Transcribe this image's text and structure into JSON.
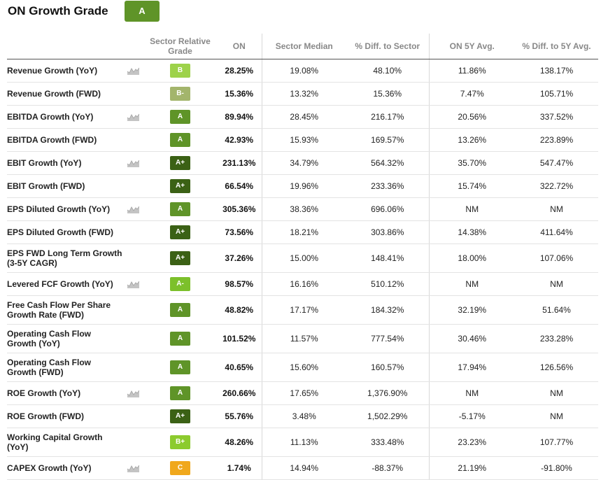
{
  "header": {
    "title": "ON Growth Grade",
    "overall_grade": "A",
    "overall_grade_color": "#5f9428"
  },
  "columns": {
    "metric": "",
    "icon": "",
    "sector_grade": "Sector Relative Grade",
    "on": "ON",
    "sector_median": "Sector Median",
    "pct_diff_sector": "% Diff. to Sector",
    "on_5y_avg": "ON 5Y Avg.",
    "pct_diff_5y": "% Diff. to 5Y Avg."
  },
  "grade_colors": {
    "A+": "#3b6115",
    "A": "#5f9428",
    "A-": "#7cc02b",
    "B+": "#8ccb2e",
    "B": "#9dd24a",
    "B-": "#a3b56c",
    "C": "#f0a81c"
  },
  "rows": [
    {
      "metric": "Revenue Growth (YoY)",
      "chart_icon": true,
      "grade": "B",
      "on": "28.25%",
      "sector_median": "19.08%",
      "pct_diff_sector": "48.10%",
      "on_5y_avg": "11.86%",
      "pct_diff_5y": "138.17%"
    },
    {
      "metric": "Revenue Growth (FWD)",
      "chart_icon": false,
      "grade": "B-",
      "on": "15.36%",
      "sector_median": "13.32%",
      "pct_diff_sector": "15.36%",
      "on_5y_avg": "7.47%",
      "pct_diff_5y": "105.71%"
    },
    {
      "metric": "EBITDA Growth (YoY)",
      "chart_icon": true,
      "grade": "A",
      "on": "89.94%",
      "sector_median": "28.45%",
      "pct_diff_sector": "216.17%",
      "on_5y_avg": "20.56%",
      "pct_diff_5y": "337.52%"
    },
    {
      "metric": "EBITDA Growth (FWD)",
      "chart_icon": false,
      "grade": "A",
      "on": "42.93%",
      "sector_median": "15.93%",
      "pct_diff_sector": "169.57%",
      "on_5y_avg": "13.26%",
      "pct_diff_5y": "223.89%"
    },
    {
      "metric": "EBIT Growth (YoY)",
      "chart_icon": true,
      "grade": "A+",
      "on": "231.13%",
      "sector_median": "34.79%",
      "pct_diff_sector": "564.32%",
      "on_5y_avg": "35.70%",
      "pct_diff_5y": "547.47%"
    },
    {
      "metric": "EBIT Growth (FWD)",
      "chart_icon": false,
      "grade": "A+",
      "on": "66.54%",
      "sector_median": "19.96%",
      "pct_diff_sector": "233.36%",
      "on_5y_avg": "15.74%",
      "pct_diff_5y": "322.72%"
    },
    {
      "metric": "EPS Diluted Growth (YoY)",
      "chart_icon": true,
      "grade": "A",
      "on": "305.36%",
      "sector_median": "38.36%",
      "pct_diff_sector": "696.06%",
      "on_5y_avg": "NM",
      "pct_diff_5y": "NM"
    },
    {
      "metric": "EPS Diluted Growth (FWD)",
      "chart_icon": false,
      "grade": "A+",
      "on": "73.56%",
      "sector_median": "18.21%",
      "pct_diff_sector": "303.86%",
      "on_5y_avg": "14.38%",
      "pct_diff_5y": "411.64%"
    },
    {
      "metric": "EPS FWD Long Term Growth (3-5Y CAGR)",
      "chart_icon": false,
      "grade": "A+",
      "on": "37.26%",
      "sector_median": "15.00%",
      "pct_diff_sector": "148.41%",
      "on_5y_avg": "18.00%",
      "pct_diff_5y": "107.06%"
    },
    {
      "metric": "Levered FCF Growth (YoY)",
      "chart_icon": true,
      "grade": "A-",
      "on": "98.57%",
      "sector_median": "16.16%",
      "pct_diff_sector": "510.12%",
      "on_5y_avg": "NM",
      "pct_diff_5y": "NM"
    },
    {
      "metric": "Free Cash Flow Per Share Growth Rate (FWD)",
      "chart_icon": false,
      "grade": "A",
      "on": "48.82%",
      "sector_median": "17.17%",
      "pct_diff_sector": "184.32%",
      "on_5y_avg": "32.19%",
      "pct_diff_5y": "51.64%"
    },
    {
      "metric": "Operating Cash Flow Growth (YoY)",
      "chart_icon": false,
      "grade": "A",
      "on": "101.52%",
      "sector_median": "11.57%",
      "pct_diff_sector": "777.54%",
      "on_5y_avg": "30.46%",
      "pct_diff_5y": "233.28%"
    },
    {
      "metric": "Operating Cash Flow Growth (FWD)",
      "chart_icon": false,
      "grade": "A",
      "on": "40.65%",
      "sector_median": "15.60%",
      "pct_diff_sector": "160.57%",
      "on_5y_avg": "17.94%",
      "pct_diff_5y": "126.56%"
    },
    {
      "metric": "ROE Growth (YoY)",
      "chart_icon": true,
      "grade": "A",
      "on": "260.66%",
      "sector_median": "17.65%",
      "pct_diff_sector": "1,376.90%",
      "on_5y_avg": "NM",
      "pct_diff_5y": "NM"
    },
    {
      "metric": "ROE Growth (FWD)",
      "chart_icon": false,
      "grade": "A+",
      "on": "55.76%",
      "sector_median": "3.48%",
      "pct_diff_sector": "1,502.29%",
      "on_5y_avg": "-5.17%",
      "pct_diff_5y": "NM"
    },
    {
      "metric": "Working Capital Growth (YoY)",
      "chart_icon": false,
      "grade": "B+",
      "on": "48.26%",
      "sector_median": "11.13%",
      "pct_diff_sector": "333.48%",
      "on_5y_avg": "23.23%",
      "pct_diff_5y": "107.77%"
    },
    {
      "metric": "CAPEX Growth (YoY)",
      "chart_icon": true,
      "grade": "C",
      "on": "1.74%",
      "sector_median": "14.94%",
      "pct_diff_sector": "-88.37%",
      "on_5y_avg": "21.19%",
      "pct_diff_5y": "-91.80%"
    }
  ]
}
